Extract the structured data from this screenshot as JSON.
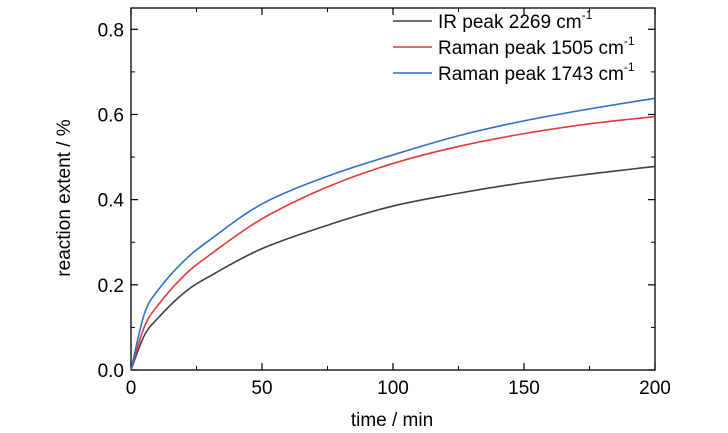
{
  "chart_data": {
    "type": "line",
    "xlabel": "time / min",
    "ylabel": "reaction extent / %",
    "xlim": [
      0,
      200
    ],
    "ylim": [
      0,
      0.85
    ],
    "xticks": [
      0,
      50,
      100,
      150,
      200
    ],
    "yticks": [
      0.0,
      0.2,
      0.4,
      0.6,
      0.8
    ],
    "xtick_labels": [
      "0",
      "50",
      "100",
      "150",
      "200"
    ],
    "ytick_labels": [
      "0.0",
      "0.2",
      "0.4",
      "0.6",
      "0.8"
    ],
    "grid": false,
    "legend_position": "top-right",
    "series": [
      {
        "name": "IR peak 2269 cm-1",
        "label_main": "IR peak 2269 cm",
        "label_sup": "-1",
        "color": "#404040",
        "x": [
          0,
          5,
          10,
          20,
          30,
          50,
          75,
          100,
          125,
          150,
          175,
          200
        ],
        "y": [
          0,
          0.08,
          0.12,
          0.18,
          0.22,
          0.285,
          0.34,
          0.385,
          0.415,
          0.44,
          0.46,
          0.478
        ]
      },
      {
        "name": "Raman peak 1505 cm-1",
        "label_main": "Raman peak 1505 cm",
        "label_sup": "-1",
        "color": "#e23a3a",
        "x": [
          0,
          5,
          10,
          20,
          30,
          50,
          75,
          100,
          125,
          150,
          175,
          200
        ],
        "y": [
          0,
          0.1,
          0.15,
          0.22,
          0.27,
          0.355,
          0.43,
          0.485,
          0.525,
          0.555,
          0.578,
          0.595
        ]
      },
      {
        "name": "Raman peak 1743 cm-1",
        "label_main": "Raman peak 1743 cm",
        "label_sup": "-1",
        "color": "#2f6fc9",
        "x": [
          0,
          5,
          10,
          20,
          30,
          50,
          75,
          100,
          125,
          150,
          175,
          200
        ],
        "y": [
          0,
          0.13,
          0.185,
          0.255,
          0.305,
          0.39,
          0.455,
          0.505,
          0.55,
          0.585,
          0.613,
          0.638
        ]
      }
    ]
  }
}
